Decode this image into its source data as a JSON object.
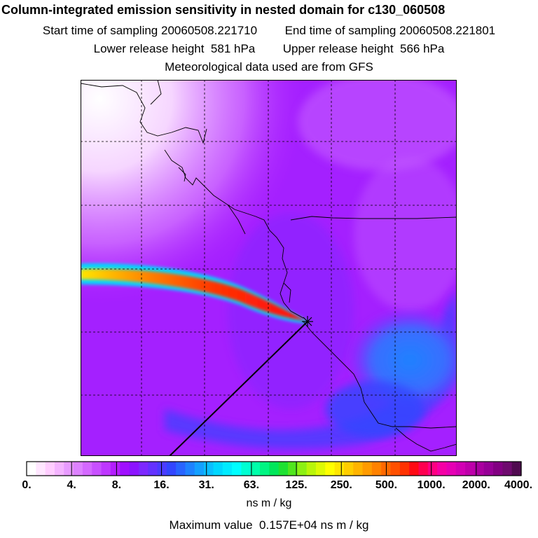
{
  "header": {
    "title": "Column-integrated emission sensitivity in nested domain for c130_060508",
    "start_label": "Start time of sampling",
    "start_value": "20060508.221710",
    "end_label": "End time of sampling",
    "end_value": "20060508.221801",
    "lower_label": "Lower release height",
    "lower_value": "581 hPa",
    "upper_label": "Upper release height",
    "upper_value": "566 hPa",
    "met_text": "Meteorological data used are from GFS"
  },
  "colorbar": {
    "labels": [
      "0.",
      "4.",
      "8.",
      "16.",
      "31.",
      "63.",
      "125.",
      "250.",
      "500.",
      "1000.",
      "2000.",
      "4000."
    ],
    "colors": [
      "#ffffff",
      "#ffe6ff",
      "#ffcdff",
      "#f4b4ff",
      "#e89bff",
      "#dd82ff",
      "#d469ff",
      "#c850ff",
      "#be37ff",
      "#b41eff",
      "#a00fff",
      "#8c14ff",
      "#7d28ff",
      "#6432ff",
      "#4b3cff",
      "#3246ff",
      "#2864ff",
      "#1e82ff",
      "#14a0ff",
      "#0abeff",
      "#00d7ff",
      "#00ebff",
      "#00ffff",
      "#00ffd2",
      "#00ffaa",
      "#00f582",
      "#00e65a",
      "#1ee132",
      "#50e61e",
      "#8cf014",
      "#b9f50a",
      "#ddfa05",
      "#ffff00",
      "#ffe600",
      "#ffcd00",
      "#ffb400",
      "#ff9b00",
      "#ff8200",
      "#ff6900",
      "#ff5000",
      "#ff3200",
      "#ff0a14",
      "#ff0050",
      "#ff0082",
      "#f500a5",
      "#e600b4",
      "#d200b4",
      "#be00aa",
      "#aa00a0",
      "#960096",
      "#820082",
      "#6e0a6e",
      "#500a50"
    ],
    "units": "ns m / kg",
    "max_label": "Maximum value",
    "max_value": "0.157E+04",
    "max_units": "ns m / kg"
  }
}
